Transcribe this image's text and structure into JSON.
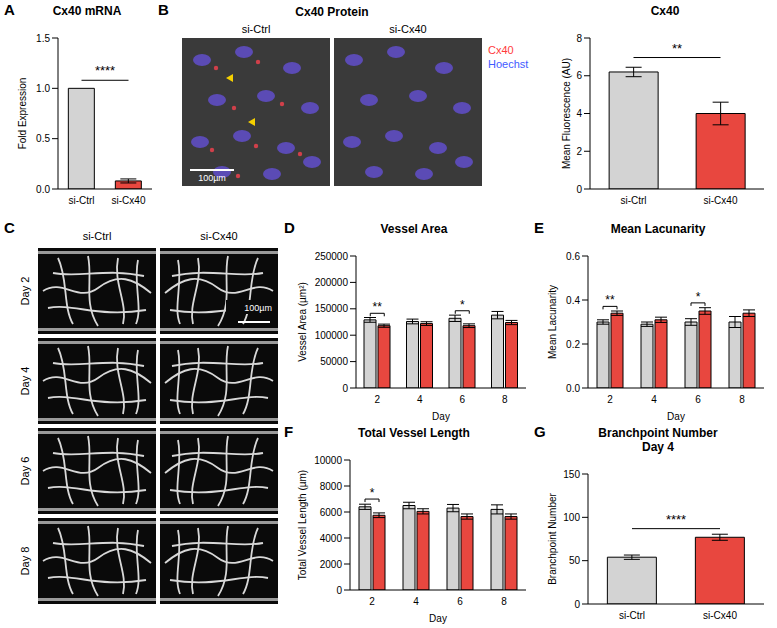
{
  "chart_data": [
    {
      "panel": "A",
      "type": "bar",
      "title": "Cx40 mRNA",
      "y_label": "Fold Expression",
      "categories": [
        "si-Ctrl",
        "si-Cx40"
      ],
      "values": [
        1,
        0.08
      ],
      "errors": [
        0,
        0.02
      ],
      "colors": [
        "#d3d3d3",
        "#e8473f"
      ],
      "ylim": [
        0,
        1.5
      ],
      "yticks": [
        {
          "value": 0,
          "label": "0.0"
        },
        0.5,
        {
          "value": 1,
          "label": "1.0"
        },
        1.5
      ],
      "significance": [
        {
          "from": "si-Ctrl",
          "to": "si-Cx40",
          "text": "****"
        }
      ]
    },
    {
      "type": "bar",
      "title": "Cx40",
      "y_label": "Mean Fluorescence (AU)",
      "categories": [
        "si-Ctrl",
        "si-Cx40"
      ],
      "values": [
        6.2,
        4.0
      ],
      "errors": [
        0.25,
        0.6
      ],
      "colors": [
        "#d3d3d3",
        "#e8473f"
      ],
      "ylim": [
        0,
        8
      ],
      "yticks": [
        0,
        2,
        4,
        6,
        8
      ],
      "significance": [
        {
          "from": "si-Ctrl",
          "to": "si-Cx40",
          "text": "**"
        }
      ]
    },
    {
      "panel": "D",
      "type": "bar",
      "title": "Vessel Area",
      "x_label": "Day",
      "y_label": "Vessel Area (µm²)",
      "categories": [
        2,
        4,
        6,
        8
      ],
      "series": [
        {
          "color": "#d3d3d3",
          "values": [
            129000,
            126000,
            132000,
            138000
          ],
          "errors": [
            4500,
            4500,
            6000,
            7000
          ]
        },
        {
          "color": "#e8473f",
          "values": [
            118000,
            122000,
            118000,
            124000
          ],
          "errors": [
            3000,
            3500,
            3500,
            4000
          ]
        }
      ],
      "ylim": [
        0,
        250000
      ],
      "yticks": [
        0,
        50000,
        100000,
        150000,
        200000,
        250000
      ],
      "significance": [
        {
          "category": 2,
          "text": "**"
        },
        {
          "category": 6,
          "text": "*"
        }
      ]
    },
    {
      "panel": "E",
      "type": "bar",
      "title": "Mean Lacunarity",
      "x_label": "Day",
      "y_label": "Mean Lacunarity",
      "categories": [
        2,
        4,
        6,
        8
      ],
      "series": [
        {
          "color": "#d3d3d3",
          "values": [
            0.3,
            0.29,
            0.3,
            0.3
          ],
          "errors": [
            0.01,
            0.01,
            0.015,
            0.025
          ]
        },
        {
          "color": "#e8473f",
          "values": [
            0.34,
            0.31,
            0.35,
            0.34
          ],
          "errors": [
            0.01,
            0.012,
            0.015,
            0.015
          ]
        }
      ],
      "ylim": [
        0,
        0.6
      ],
      "yticks": [
        {
          "value": 0,
          "label": "0.0"
        },
        0.2,
        0.4,
        0.6
      ],
      "significance": [
        {
          "category": 2,
          "text": "**"
        },
        {
          "category": 6,
          "text": "*"
        }
      ]
    },
    {
      "panel": "F",
      "type": "bar",
      "title": "Total Vessel Length",
      "x_label": "Day",
      "y_label": "Total Vessel Length (µm)",
      "categories": [
        2,
        4,
        6,
        8
      ],
      "series": [
        {
          "color": "#d3d3d3",
          "values": [
            6400,
            6500,
            6300,
            6200
          ],
          "errors": [
            200,
            250,
            280,
            350
          ]
        },
        {
          "color": "#e8473f",
          "values": [
            5750,
            6050,
            5650,
            5650
          ],
          "errors": [
            180,
            200,
            200,
            200
          ]
        }
      ],
      "ylim": [
        0,
        10000
      ],
      "yticks": [
        0,
        2000,
        4000,
        6000,
        8000,
        10000
      ],
      "significance": [
        {
          "category": 2,
          "text": "*"
        }
      ]
    },
    {
      "panel": "G",
      "type": "bar",
      "title": "Branchpoint Number",
      "subtitle": "Day 4",
      "y_label": "Branchpoint Number",
      "categories": [
        "si-Ctrl",
        "si-Cx40"
      ],
      "values": [
        54,
        77
      ],
      "errors": [
        2.5,
        3.5
      ],
      "colors": [
        "#d3d3d3",
        "#e8473f"
      ],
      "ylim": [
        0,
        150
      ],
      "yticks": [
        0,
        50,
        100,
        150
      ],
      "significance": [
        {
          "from": "si-Ctrl",
          "to": "si-Cx40",
          "text": "****"
        }
      ]
    }
  ],
  "images": [
    {
      "panel": "B",
      "title": "Cx40 Protein",
      "columns": [
        "si-Ctrl",
        "si-Cx40"
      ],
      "channels": [
        {
          "name": "Cx40",
          "color": "#ff3b3b"
        },
        {
          "name": "Hoechst",
          "color": "#3f5bff"
        }
      ],
      "scale_bar": "100µm"
    },
    {
      "panel": "C",
      "columns": [
        "si-Ctrl",
        "si-Cx40"
      ],
      "rows": [
        "Day 2",
        "Day 4",
        "Day 6",
        "Day 8"
      ],
      "scale_bar": "100µm"
    }
  ]
}
